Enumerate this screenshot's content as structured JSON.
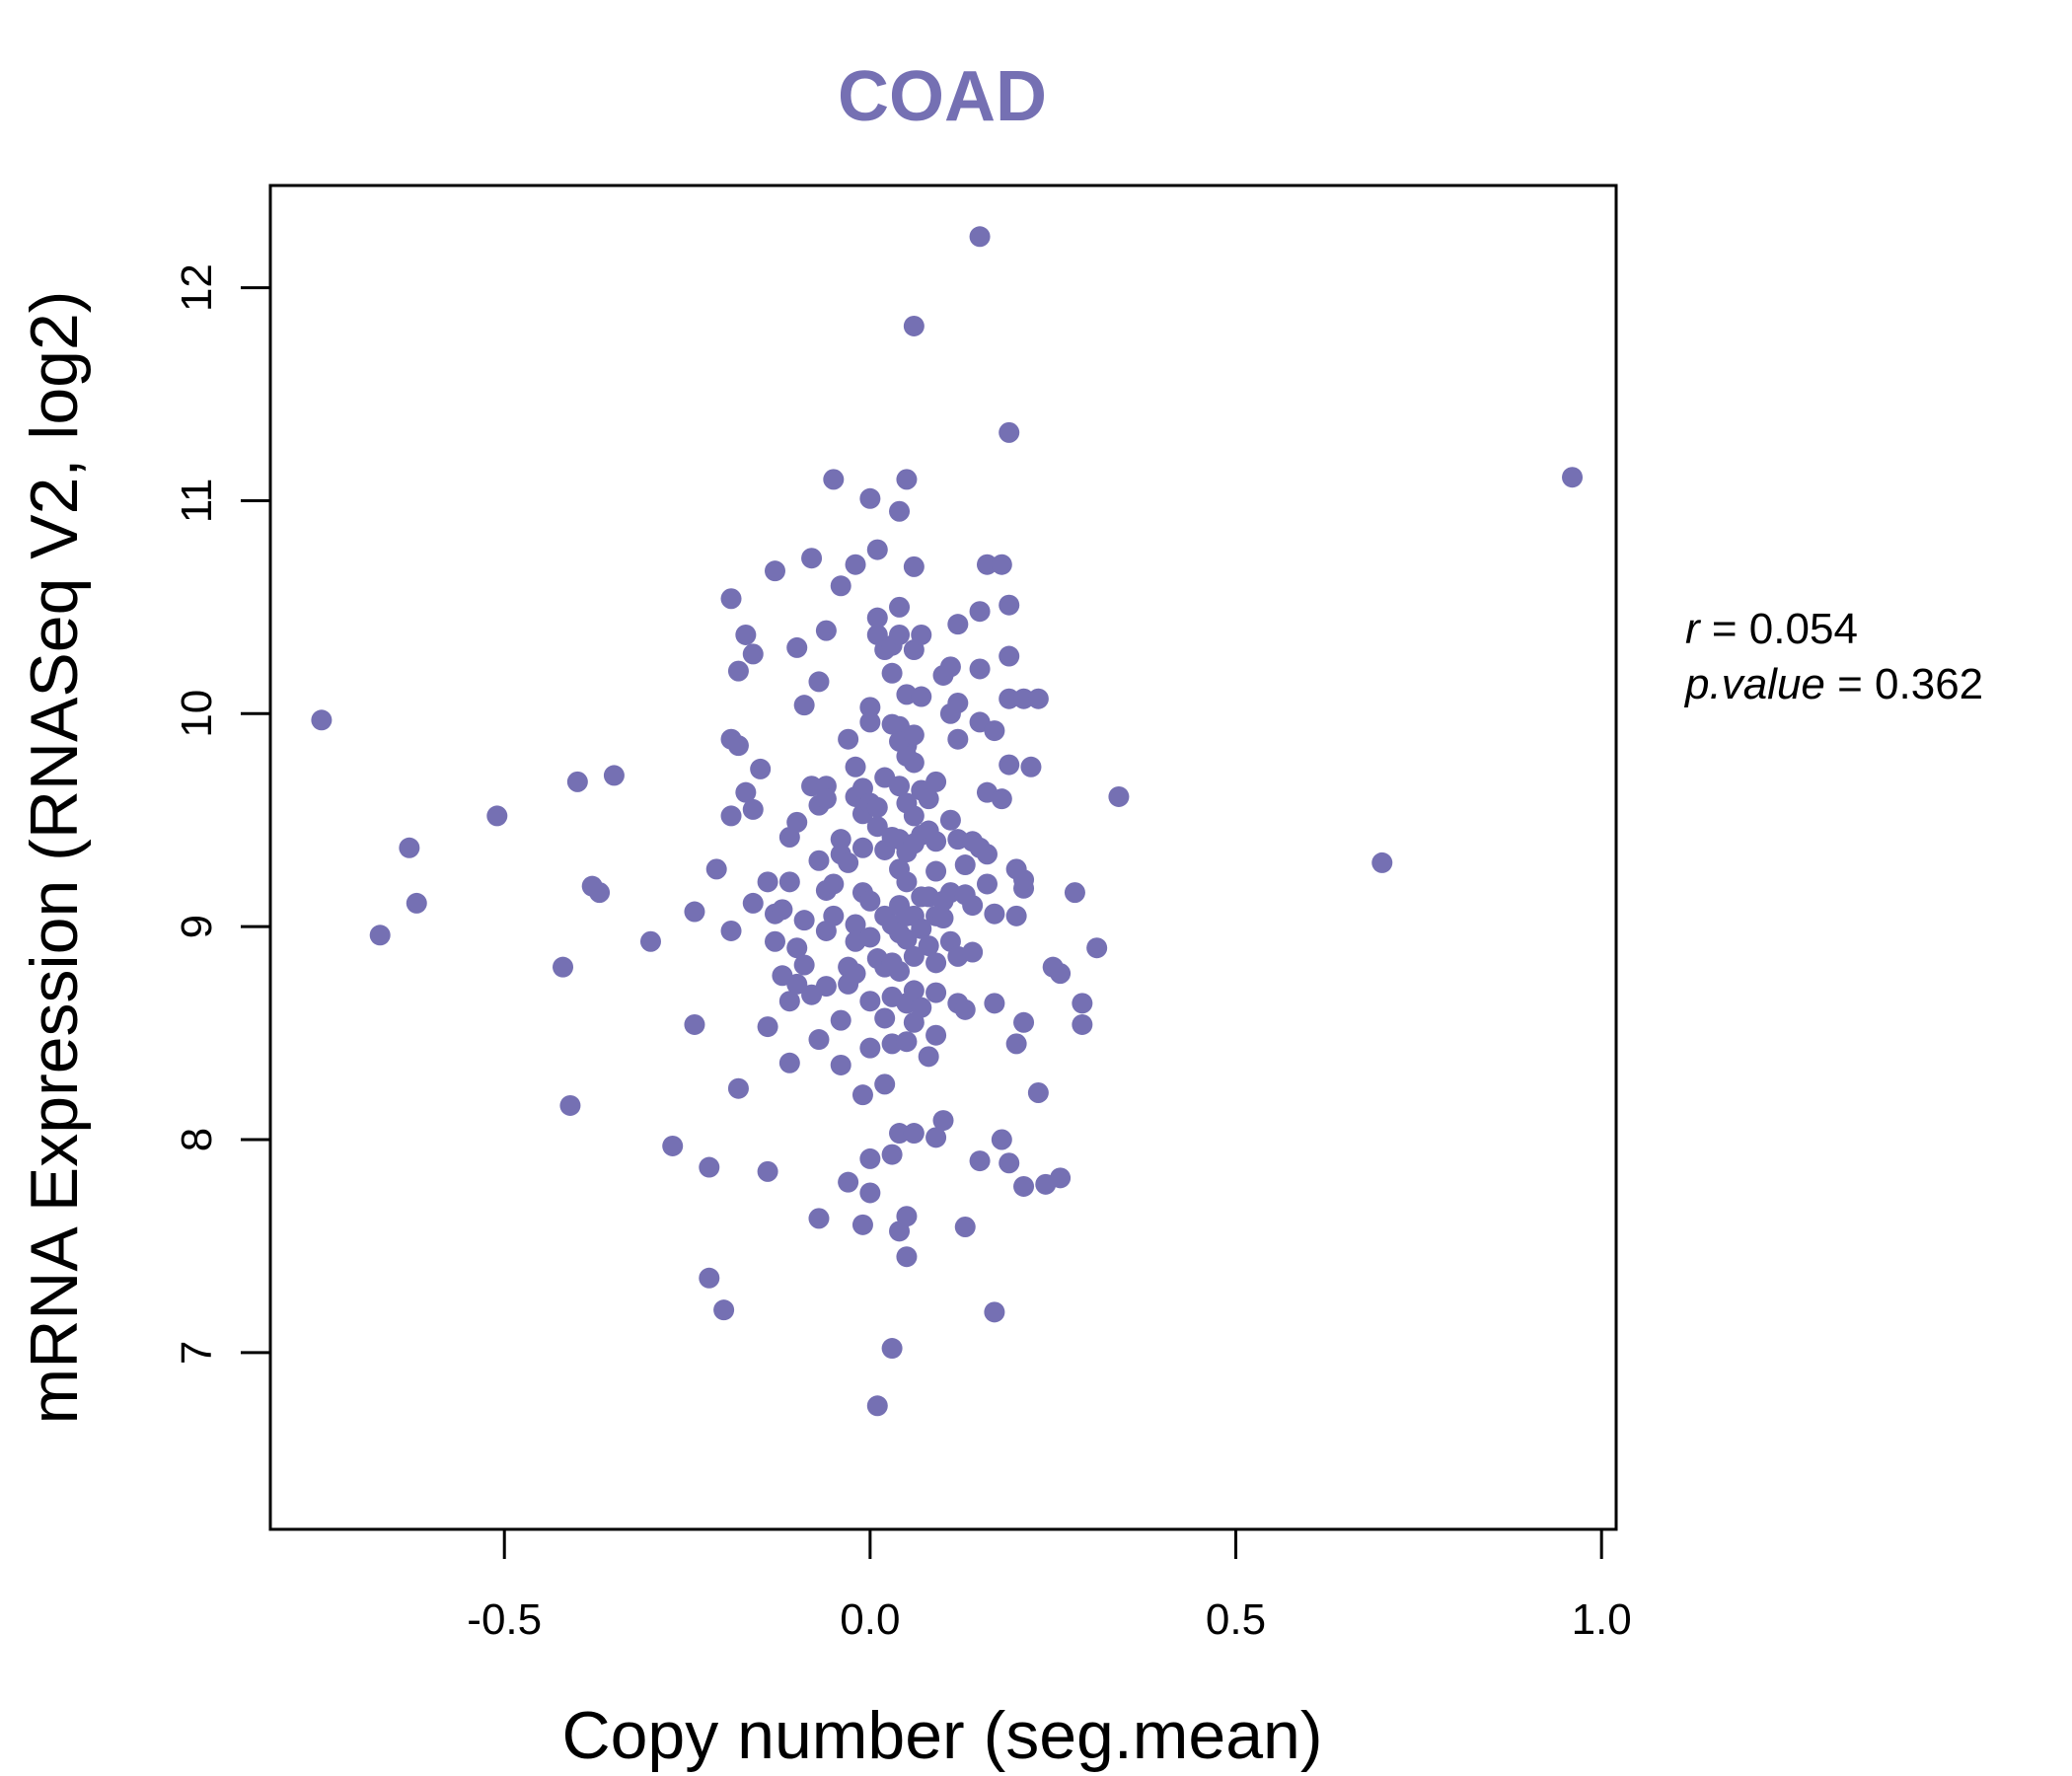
{
  "chart_data": {
    "type": "scatter",
    "title": "COAD",
    "xlabel": "Copy number (seg.mean)",
    "ylabel": "mRNA Expression (RNASeq V2, log2)",
    "xlim": [
      -0.82,
      1.02
    ],
    "ylim": [
      6.17,
      12.48
    ],
    "xticks": [
      -0.5,
      0.0,
      0.5,
      1.0
    ],
    "xtick_labels": [
      "-0.5",
      "0.0",
      "0.5",
      "1.0"
    ],
    "yticks": [
      7,
      8,
      9,
      10,
      11,
      12
    ],
    "ytick_labels": [
      "7",
      "8",
      "9",
      "10",
      "11",
      "12"
    ],
    "grid": false,
    "legend": "none",
    "point_color": "#7570b3",
    "stats": {
      "r_label": "r",
      "r_eq": " = 0.054",
      "p_label": "p.value",
      "p_eq": " = 0.362"
    },
    "points": [
      [
        -0.75,
        9.97
      ],
      [
        -0.67,
        8.96
      ],
      [
        -0.63,
        9.37
      ],
      [
        -0.62,
        9.11
      ],
      [
        -0.51,
        9.52
      ],
      [
        -0.42,
        8.81
      ],
      [
        -0.41,
        8.16
      ],
      [
        -0.4,
        9.68
      ],
      [
        -0.38,
        9.19
      ],
      [
        -0.37,
        9.16
      ],
      [
        -0.35,
        9.71
      ],
      [
        -0.3,
        8.93
      ],
      [
        -0.27,
        7.97
      ],
      [
        -0.24,
        8.54
      ],
      [
        -0.24,
        9.07
      ],
      [
        -0.22,
        7.35
      ],
      [
        -0.22,
        7.87
      ],
      [
        -0.21,
        9.27
      ],
      [
        -0.2,
        7.2
      ],
      [
        -0.19,
        10.54
      ],
      [
        -0.19,
        9.88
      ],
      [
        -0.19,
        9.52
      ],
      [
        -0.19,
        8.98
      ],
      [
        -0.18,
        10.2
      ],
      [
        -0.18,
        9.85
      ],
      [
        -0.18,
        8.24
      ],
      [
        -0.17,
        10.37
      ],
      [
        -0.17,
        9.63
      ],
      [
        -0.16,
        10.28
      ],
      [
        -0.16,
        9.55
      ],
      [
        -0.16,
        9.11
      ],
      [
        -0.15,
        9.74
      ],
      [
        -0.14,
        8.53
      ],
      [
        -0.14,
        9.21
      ],
      [
        -0.14,
        7.85
      ],
      [
        -0.13,
        8.93
      ],
      [
        -0.13,
        9.06
      ],
      [
        -0.13,
        10.67
      ],
      [
        -0.12,
        9.08
      ],
      [
        -0.12,
        8.77
      ],
      [
        -0.11,
        9.42
      ],
      [
        -0.11,
        8.36
      ],
      [
        -0.11,
        8.65
      ],
      [
        -0.11,
        9.21
      ],
      [
        -0.1,
        10.31
      ],
      [
        -0.1,
        9.49
      ],
      [
        -0.1,
        8.73
      ],
      [
        -0.1,
        8.9
      ],
      [
        -0.09,
        10.04
      ],
      [
        -0.09,
        9.03
      ],
      [
        -0.09,
        8.82
      ],
      [
        -0.08,
        10.73
      ],
      [
        -0.08,
        9.66
      ],
      [
        -0.08,
        8.68
      ],
      [
        -0.07,
        9.57
      ],
      [
        -0.07,
        10.15
      ],
      [
        -0.07,
        9.31
      ],
      [
        -0.07,
        8.47
      ],
      [
        -0.07,
        7.63
      ],
      [
        -0.06,
        10.39
      ],
      [
        -0.06,
        9.66
      ],
      [
        -0.06,
        9.6
      ],
      [
        -0.06,
        9.17
      ],
      [
        -0.06,
        8.98
      ],
      [
        -0.06,
        8.72
      ],
      [
        -0.05,
        11.1
      ],
      [
        -0.05,
        9.2
      ],
      [
        -0.05,
        9.05
      ],
      [
        -0.04,
        9.41
      ],
      [
        -0.04,
        8.56
      ],
      [
        -0.04,
        9.34
      ],
      [
        -0.04,
        10.6
      ],
      [
        -0.04,
        8.35
      ],
      [
        -0.03,
        7.8
      ],
      [
        -0.03,
        9.3
      ],
      [
        -0.03,
        9.88
      ],
      [
        -0.03,
        8.81
      ],
      [
        -0.03,
        8.73
      ],
      [
        -0.02,
        9.75
      ],
      [
        -0.02,
        9.61
      ],
      [
        -0.02,
        10.7
      ],
      [
        -0.02,
        9.01
      ],
      [
        -0.02,
        8.93
      ],
      [
        -0.02,
        8.78
      ],
      [
        -0.01,
        9.53
      ],
      [
        -0.01,
        9.65
      ],
      [
        -0.01,
        9.37
      ],
      [
        -0.01,
        9.16
      ],
      [
        -0.01,
        8.21
      ],
      [
        -0.01,
        7.6
      ],
      [
        0.0,
        11.01
      ],
      [
        0.0,
        10.03
      ],
      [
        0.0,
        9.96
      ],
      [
        0.0,
        9.58
      ],
      [
        0.0,
        9.12
      ],
      [
        0.0,
        8.95
      ],
      [
        0.0,
        8.65
      ],
      [
        0.0,
        8.43
      ],
      [
        0.0,
        7.91
      ],
      [
        0.0,
        7.75
      ],
      [
        0.01,
        10.45
      ],
      [
        0.01,
        9.56
      ],
      [
        0.01,
        9.47
      ],
      [
        0.01,
        8.85
      ],
      [
        0.01,
        6.75
      ],
      [
        0.01,
        10.77
      ],
      [
        0.01,
        10.37
      ],
      [
        0.02,
        9.36
      ],
      [
        0.02,
        9.05
      ],
      [
        0.02,
        8.81
      ],
      [
        0.02,
        8.57
      ],
      [
        0.02,
        8.26
      ],
      [
        0.02,
        9.7
      ],
      [
        0.02,
        10.3
      ],
      [
        0.03,
        10.32
      ],
      [
        0.03,
        9.95
      ],
      [
        0.03,
        9.42
      ],
      [
        0.03,
        9.01
      ],
      [
        0.03,
        8.83
      ],
      [
        0.03,
        8.67
      ],
      [
        0.03,
        8.45
      ],
      [
        0.03,
        7.93
      ],
      [
        0.03,
        7.02
      ],
      [
        0.03,
        10.19
      ],
      [
        0.04,
        10.95
      ],
      [
        0.04,
        10.5
      ],
      [
        0.04,
        10.37
      ],
      [
        0.04,
        9.94
      ],
      [
        0.04,
        9.87
      ],
      [
        0.04,
        9.66
      ],
      [
        0.04,
        9.41
      ],
      [
        0.04,
        9.27
      ],
      [
        0.04,
        9.1
      ],
      [
        0.04,
        8.97
      ],
      [
        0.04,
        8.79
      ],
      [
        0.04,
        8.03
      ],
      [
        0.04,
        7.57
      ],
      [
        0.05,
        11.1
      ],
      [
        0.05,
        10.09
      ],
      [
        0.05,
        9.85
      ],
      [
        0.05,
        9.8
      ],
      [
        0.05,
        9.58
      ],
      [
        0.05,
        9.35
      ],
      [
        0.05,
        9.21
      ],
      [
        0.05,
        9.05
      ],
      [
        0.05,
        8.94
      ],
      [
        0.05,
        8.64
      ],
      [
        0.05,
        8.46
      ],
      [
        0.05,
        7.45
      ],
      [
        0.05,
        7.64
      ],
      [
        0.06,
        11.82
      ],
      [
        0.06,
        10.69
      ],
      [
        0.06,
        10.3
      ],
      [
        0.06,
        9.9
      ],
      [
        0.06,
        9.77
      ],
      [
        0.06,
        9.52
      ],
      [
        0.06,
        9.39
      ],
      [
        0.06,
        9.05
      ],
      [
        0.06,
        8.86
      ],
      [
        0.06,
        8.7
      ],
      [
        0.06,
        8.55
      ],
      [
        0.06,
        8.03
      ],
      [
        0.07,
        10.37
      ],
      [
        0.07,
        10.08
      ],
      [
        0.07,
        9.64
      ],
      [
        0.07,
        9.43
      ],
      [
        0.07,
        9.14
      ],
      [
        0.07,
        8.99
      ],
      [
        0.07,
        8.62
      ],
      [
        0.08,
        9.6
      ],
      [
        0.08,
        9.45
      ],
      [
        0.08,
        9.14
      ],
      [
        0.08,
        8.91
      ],
      [
        0.08,
        8.39
      ],
      [
        0.09,
        9.68
      ],
      [
        0.09,
        9.4
      ],
      [
        0.09,
        9.26
      ],
      [
        0.09,
        9.05
      ],
      [
        0.09,
        8.83
      ],
      [
        0.09,
        8.69
      ],
      [
        0.09,
        8.49
      ],
      [
        0.09,
        8.01
      ],
      [
        0.1,
        10.18
      ],
      [
        0.1,
        9.12
      ],
      [
        0.1,
        9.04
      ],
      [
        0.1,
        8.09
      ],
      [
        0.11,
        10.22
      ],
      [
        0.11,
        10.0
      ],
      [
        0.11,
        9.5
      ],
      [
        0.11,
        9.16
      ],
      [
        0.11,
        8.93
      ],
      [
        0.12,
        10.42
      ],
      [
        0.12,
        10.05
      ],
      [
        0.12,
        9.88
      ],
      [
        0.12,
        9.41
      ],
      [
        0.12,
        8.86
      ],
      [
        0.12,
        8.64
      ],
      [
        0.13,
        9.29
      ],
      [
        0.13,
        9.15
      ],
      [
        0.13,
        8.61
      ],
      [
        0.13,
        7.59
      ],
      [
        0.14,
        9.4
      ],
      [
        0.14,
        8.88
      ],
      [
        0.14,
        9.1
      ],
      [
        0.15,
        12.24
      ],
      [
        0.15,
        10.48
      ],
      [
        0.15,
        10.21
      ],
      [
        0.15,
        9.96
      ],
      [
        0.15,
        9.37
      ],
      [
        0.15,
        7.9
      ],
      [
        0.16,
        9.34
      ],
      [
        0.16,
        9.63
      ],
      [
        0.16,
        9.2
      ],
      [
        0.16,
        10.7
      ],
      [
        0.17,
        9.92
      ],
      [
        0.17,
        9.06
      ],
      [
        0.17,
        8.64
      ],
      [
        0.17,
        7.19
      ],
      [
        0.18,
        10.7
      ],
      [
        0.18,
        9.6
      ],
      [
        0.18,
        8.0
      ],
      [
        0.19,
        11.32
      ],
      [
        0.19,
        10.07
      ],
      [
        0.19,
        10.51
      ],
      [
        0.19,
        10.27
      ],
      [
        0.19,
        9.76
      ],
      [
        0.19,
        7.89
      ],
      [
        0.2,
        9.27
      ],
      [
        0.2,
        9.05
      ],
      [
        0.2,
        8.45
      ],
      [
        0.21,
        10.07
      ],
      [
        0.21,
        9.18
      ],
      [
        0.21,
        9.22
      ],
      [
        0.21,
        8.55
      ],
      [
        0.21,
        7.78
      ],
      [
        0.22,
        9.75
      ],
      [
        0.23,
        10.07
      ],
      [
        0.23,
        8.22
      ],
      [
        0.24,
        7.79
      ],
      [
        0.25,
        8.81
      ],
      [
        0.26,
        7.82
      ],
      [
        0.26,
        8.78
      ],
      [
        0.28,
        9.16
      ],
      [
        0.29,
        8.64
      ],
      [
        0.29,
        8.54
      ],
      [
        0.31,
        8.9
      ],
      [
        0.34,
        9.61
      ],
      [
        0.7,
        9.3
      ],
      [
        0.96,
        11.11
      ]
    ]
  }
}
